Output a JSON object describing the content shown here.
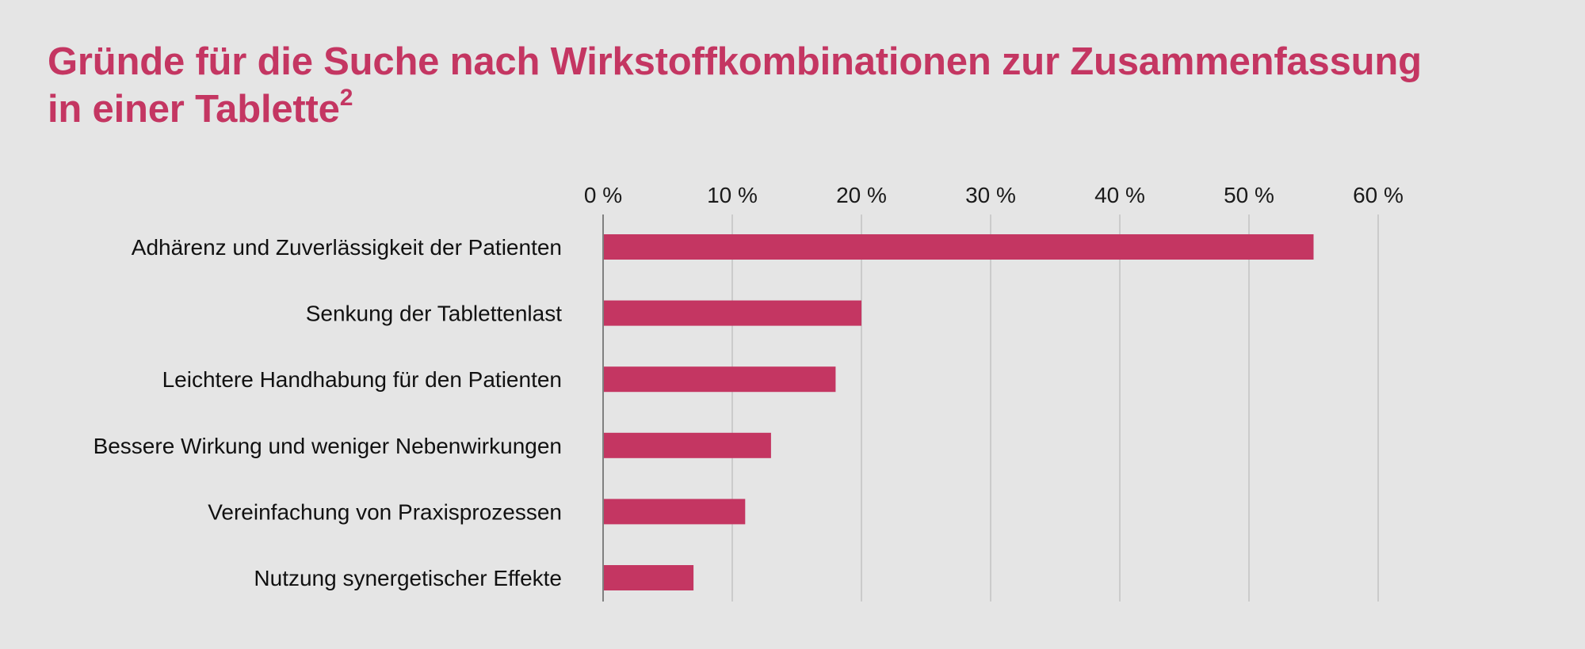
{
  "title": {
    "line1": "Gründe für die Suche nach Wirkstoffkombinationen zur Zusammenfassung",
    "line2": "in einer Tablette",
    "superscript": "2"
  },
  "colors": {
    "background": "#e5e5e5",
    "accent": "#c43662",
    "bar": "#c43662",
    "gridline": "#cbcbcb",
    "axis": "#808080",
    "text": "#111111"
  },
  "chart_data": {
    "type": "bar",
    "orientation": "horizontal",
    "title": "Gründe für die Suche nach Wirkstoffkombinationen zur Zusammenfassung in einer Tablette²",
    "xlabel": "",
    "ylabel": "",
    "categories": [
      "Adhärenz und Zuverlässigkeit der Patienten",
      "Senkung der Tablettenlast",
      "Leichtere Handhabung für den Patienten",
      "Bessere Wirkung und weniger Nebenwirkungen",
      "Vereinfachung von Praxisprozessen",
      "Nutzung synergetischer Effekte"
    ],
    "values": [
      55,
      20,
      18,
      13,
      11,
      7
    ],
    "unit": "%",
    "xlim": [
      0,
      60
    ],
    "x_ticks": [
      0,
      10,
      20,
      30,
      40,
      50,
      60
    ],
    "x_tick_labels": [
      "0 %",
      "10 %",
      "20 %",
      "30 %",
      "40 %",
      "50 %",
      "60 %"
    ],
    "x_axis_position": "top",
    "grid": true,
    "legend": "none"
  }
}
